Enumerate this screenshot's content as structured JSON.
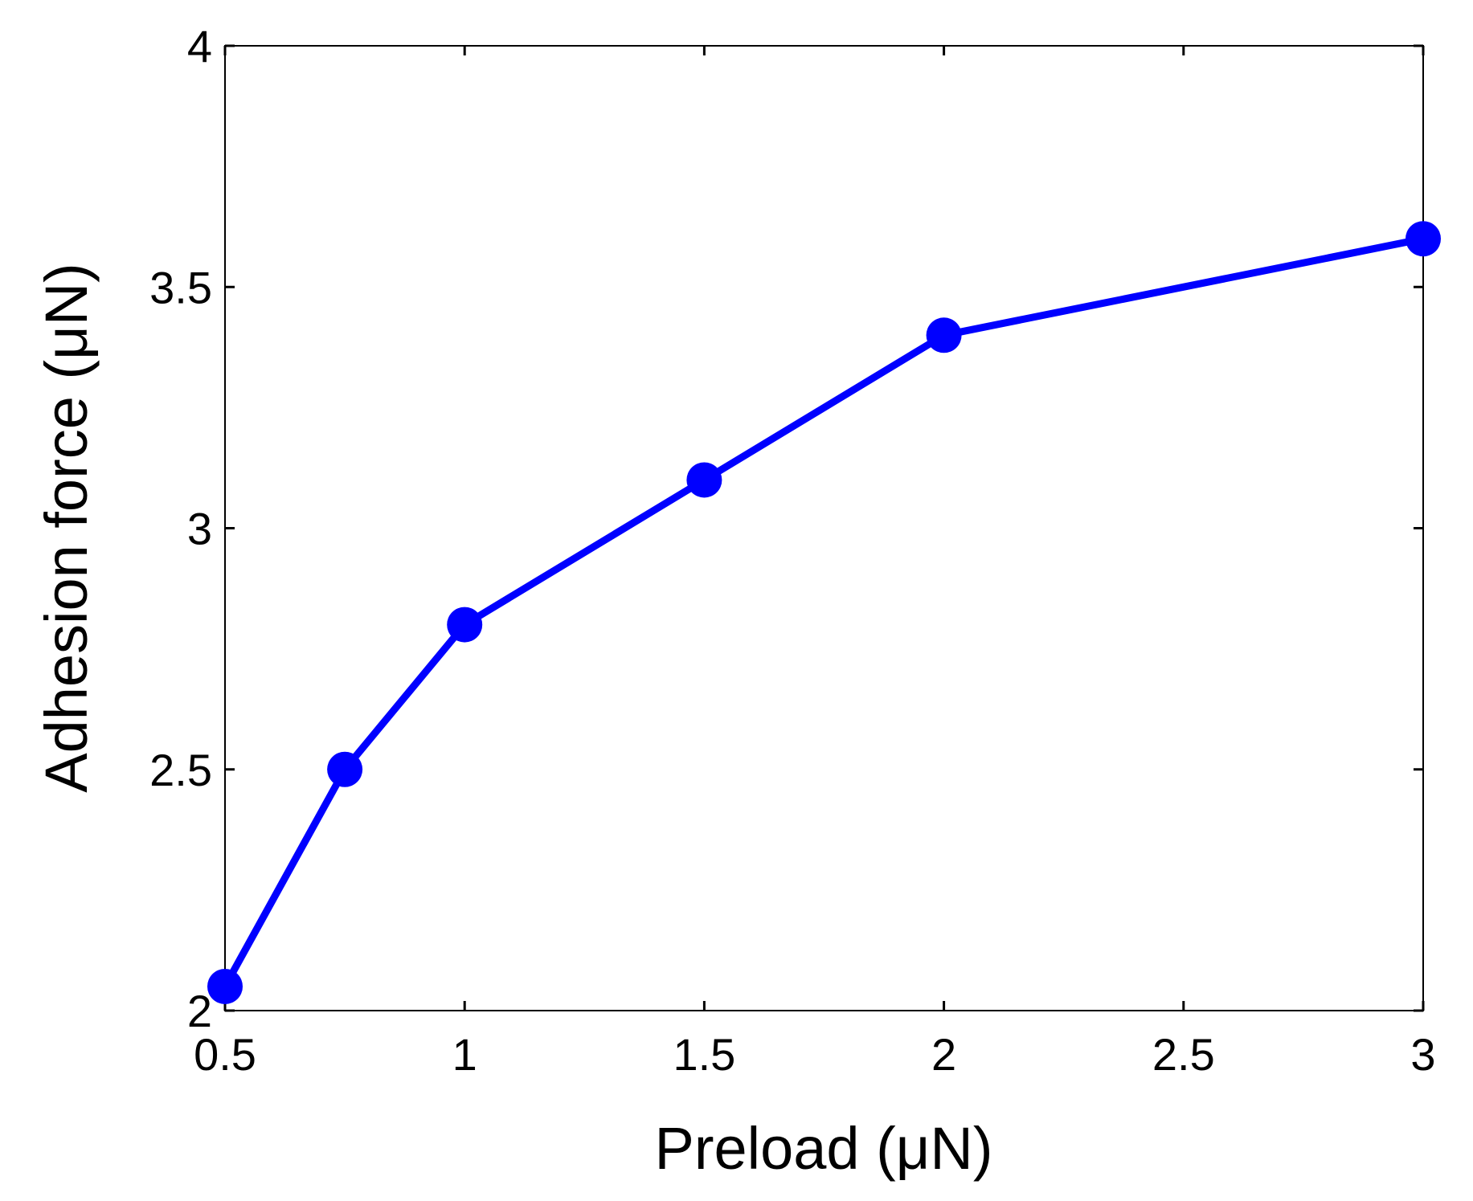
{
  "chart_data": {
    "type": "line",
    "x_label": "Preload (μN)",
    "y_label": "Adhesion force (μN)",
    "x": [
      0.5,
      0.75,
      1,
      1.5,
      2,
      3
    ],
    "series": [
      {
        "color": "#0000ff",
        "values": [
          2.05,
          2.5,
          2.8,
          3.1,
          3.4,
          3.6
        ]
      }
    ],
    "xlim": [
      0.5,
      3
    ],
    "xticks": [
      0.5,
      1,
      1.5,
      2,
      2.5,
      3
    ],
    "ylim": [
      2,
      4
    ],
    "yticks": [
      2,
      2.5,
      3,
      3.5,
      4
    ],
    "grid": false,
    "box": true
  }
}
